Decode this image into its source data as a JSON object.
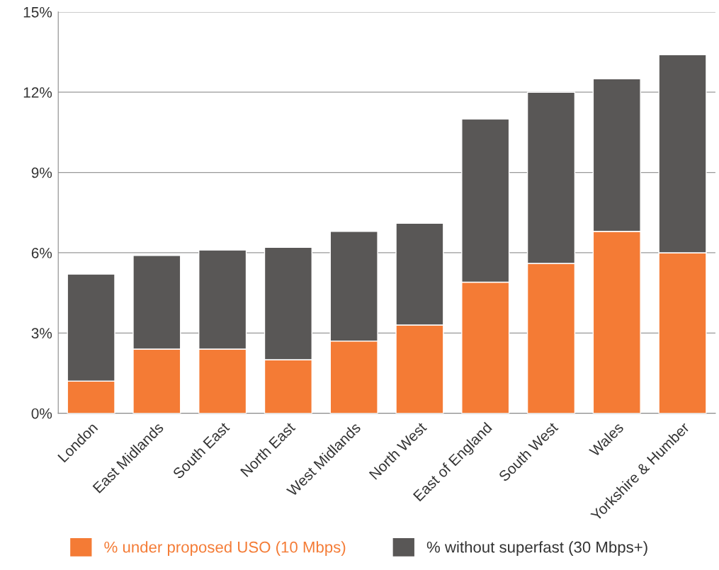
{
  "chart_data": {
    "type": "bar",
    "stacked": true,
    "categories": [
      "London",
      "East Midlands",
      "South East",
      "North East",
      "West Midlands",
      "North West",
      "East of England",
      "South West",
      "Wales",
      "Yorkshire & Humber"
    ],
    "series": [
      {
        "name": "% under proposed USO (10 Mbps)",
        "color": "#f47b35",
        "values": [
          1.2,
          2.4,
          2.4,
          2.0,
          2.7,
          3.3,
          4.9,
          5.6,
          6.8,
          6.0
        ]
      },
      {
        "name": "% without superfast (30 Mbps+)",
        "color": "#595756",
        "values": [
          4.0,
          3.5,
          3.7,
          4.2,
          4.1,
          3.8,
          6.1,
          6.4,
          5.7,
          7.4
        ]
      }
    ],
    "ylim": [
      0,
      15
    ],
    "yticks": [
      {
        "value": 0,
        "label": "0%"
      },
      {
        "value": 3,
        "label": "3%"
      },
      {
        "value": 6,
        "label": "6%"
      },
      {
        "value": 9,
        "label": "9%"
      },
      {
        "value": 12,
        "label": "12%"
      },
      {
        "value": 15,
        "label": "15%"
      }
    ],
    "grid": "y",
    "legend": "bottom"
  }
}
